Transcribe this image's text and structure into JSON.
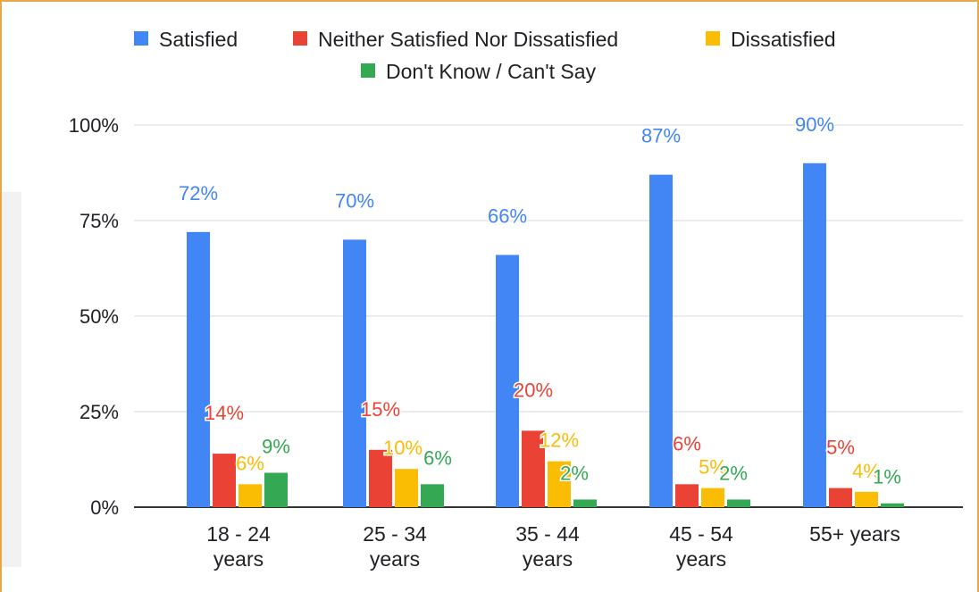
{
  "chart_data": {
    "type": "bar",
    "categories": [
      [
        "18 - 24",
        "years"
      ],
      [
        "25 - 34",
        "years"
      ],
      [
        "35 - 44",
        "years"
      ],
      [
        "45 - 54",
        "years"
      ],
      [
        "55+ years"
      ]
    ],
    "series": [
      {
        "name": "Satisfied",
        "color": "#4285f4",
        "values": [
          72,
          70,
          66,
          87,
          90
        ],
        "labels": [
          "72%",
          "70%",
          "66%",
          "87%",
          "90%"
        ]
      },
      {
        "name": "Neither Satisfied Nor Dissatisfied",
        "color": "#ea4335",
        "values": [
          14,
          15,
          20,
          6,
          5
        ],
        "labels": [
          "14%",
          "15%",
          "20%",
          "6%",
          "5%"
        ]
      },
      {
        "name": "Dissatisfied",
        "color": "#fbbc04",
        "values": [
          6,
          10,
          12,
          5,
          4
        ],
        "labels": [
          "6%",
          "10%",
          "12%",
          "5%",
          "4%"
        ]
      },
      {
        "name": "Don't Know / Can't Say",
        "color": "#34a853",
        "values": [
          9,
          6,
          2,
          2,
          1
        ],
        "labels": [
          "9%",
          "6%",
          "2%",
          "2%",
          "1%"
        ]
      }
    ],
    "ylim": [
      0,
      100
    ],
    "yticks": [
      "0%",
      "25%",
      "50%",
      "75%",
      "100%"
    ],
    "grid": true,
    "legend": "top"
  }
}
